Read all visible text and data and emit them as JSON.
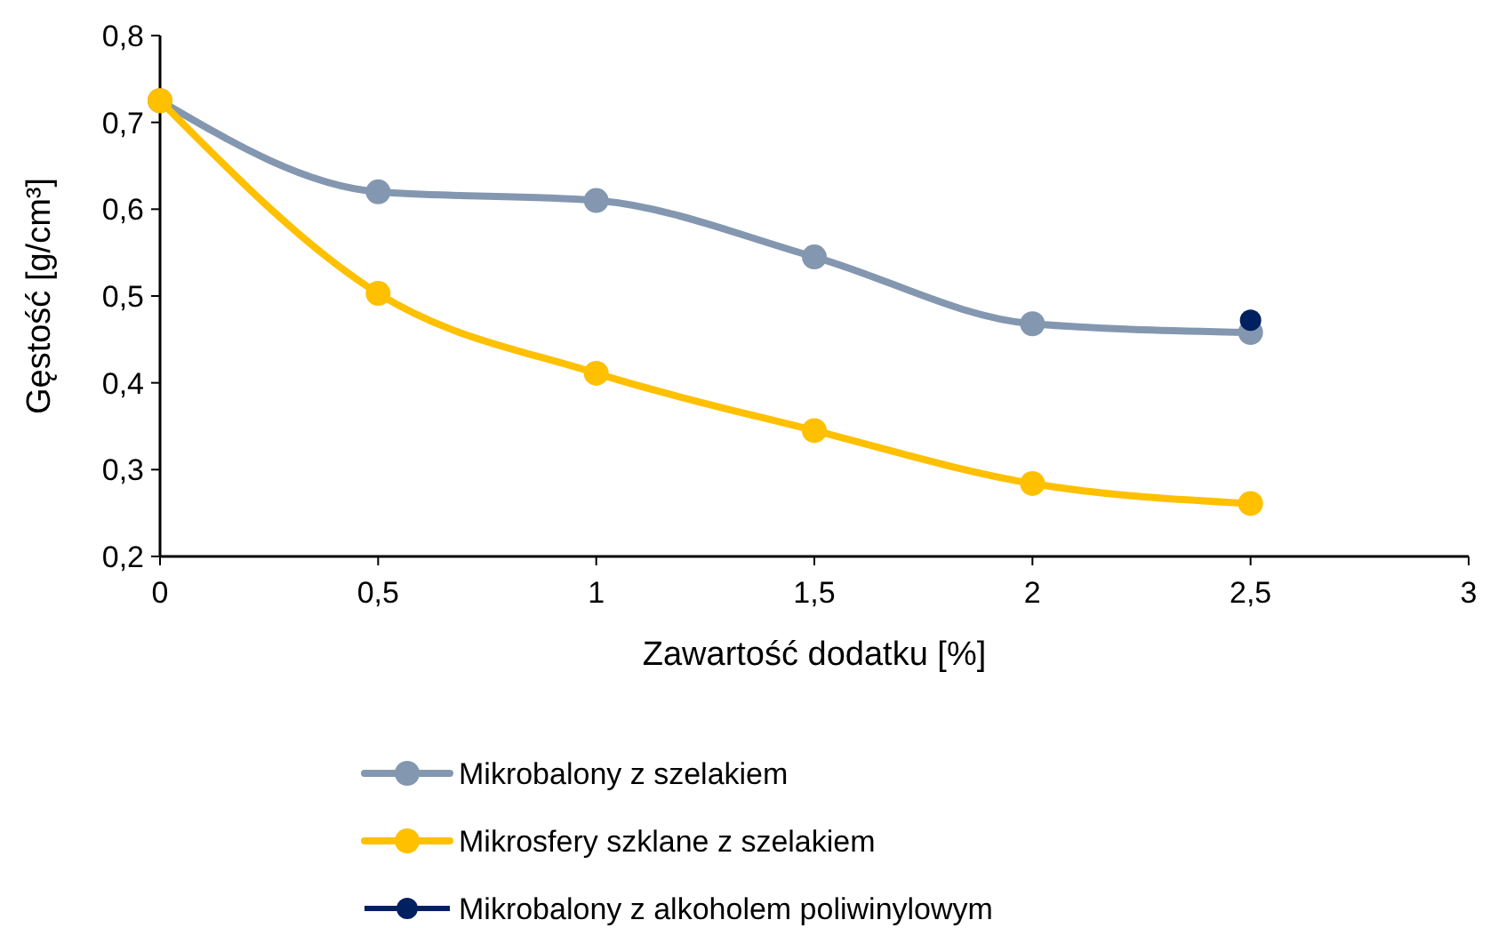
{
  "chart_data": {
    "type": "line",
    "xlabel": "Zawartość dodatku [%]",
    "ylabel": "Gęstość [g/cm³]",
    "x": [
      0,
      0.5,
      1,
      1.5,
      2,
      2.5
    ],
    "series": [
      {
        "name": "Mikrobalony z szelakiem",
        "color": "#8497b0",
        "values": [
          0.725,
          0.62,
          0.61,
          0.545,
          0.468,
          0.458
        ]
      },
      {
        "name": "Mikrosfery szklane z szelakiem",
        "color": "#ffc000",
        "values": [
          0.725,
          0.503,
          0.411,
          0.345,
          0.284,
          0.261
        ]
      },
      {
        "name": "Mikrobalony z alkoholem poliwinylowym",
        "color": "#002060",
        "type": "scatter",
        "x": [
          2.5
        ],
        "values": [
          0.472
        ]
      }
    ],
    "xlim": [
      0,
      3
    ],
    "xticks": [
      0,
      {
        "value": 0.5,
        "label": "0,5"
      },
      1,
      {
        "value": 1.5,
        "label": "1,5"
      },
      2,
      {
        "value": 2.5,
        "label": "2,5"
      },
      3
    ],
    "ylim": [
      0.2,
      0.8
    ],
    "yticks": [
      {
        "value": 0.2,
        "label": "0,2"
      },
      {
        "value": 0.3,
        "label": "0,3"
      },
      {
        "value": 0.4,
        "label": "0,4"
      },
      {
        "value": 0.5,
        "label": "0,5"
      },
      {
        "value": 0.6,
        "label": "0,6"
      },
      {
        "value": 0.7,
        "label": "0,7"
      },
      {
        "value": 0.8,
        "label": "0,8"
      }
    ],
    "grid": false,
    "legend": "bottom",
    "marker": "circle"
  }
}
